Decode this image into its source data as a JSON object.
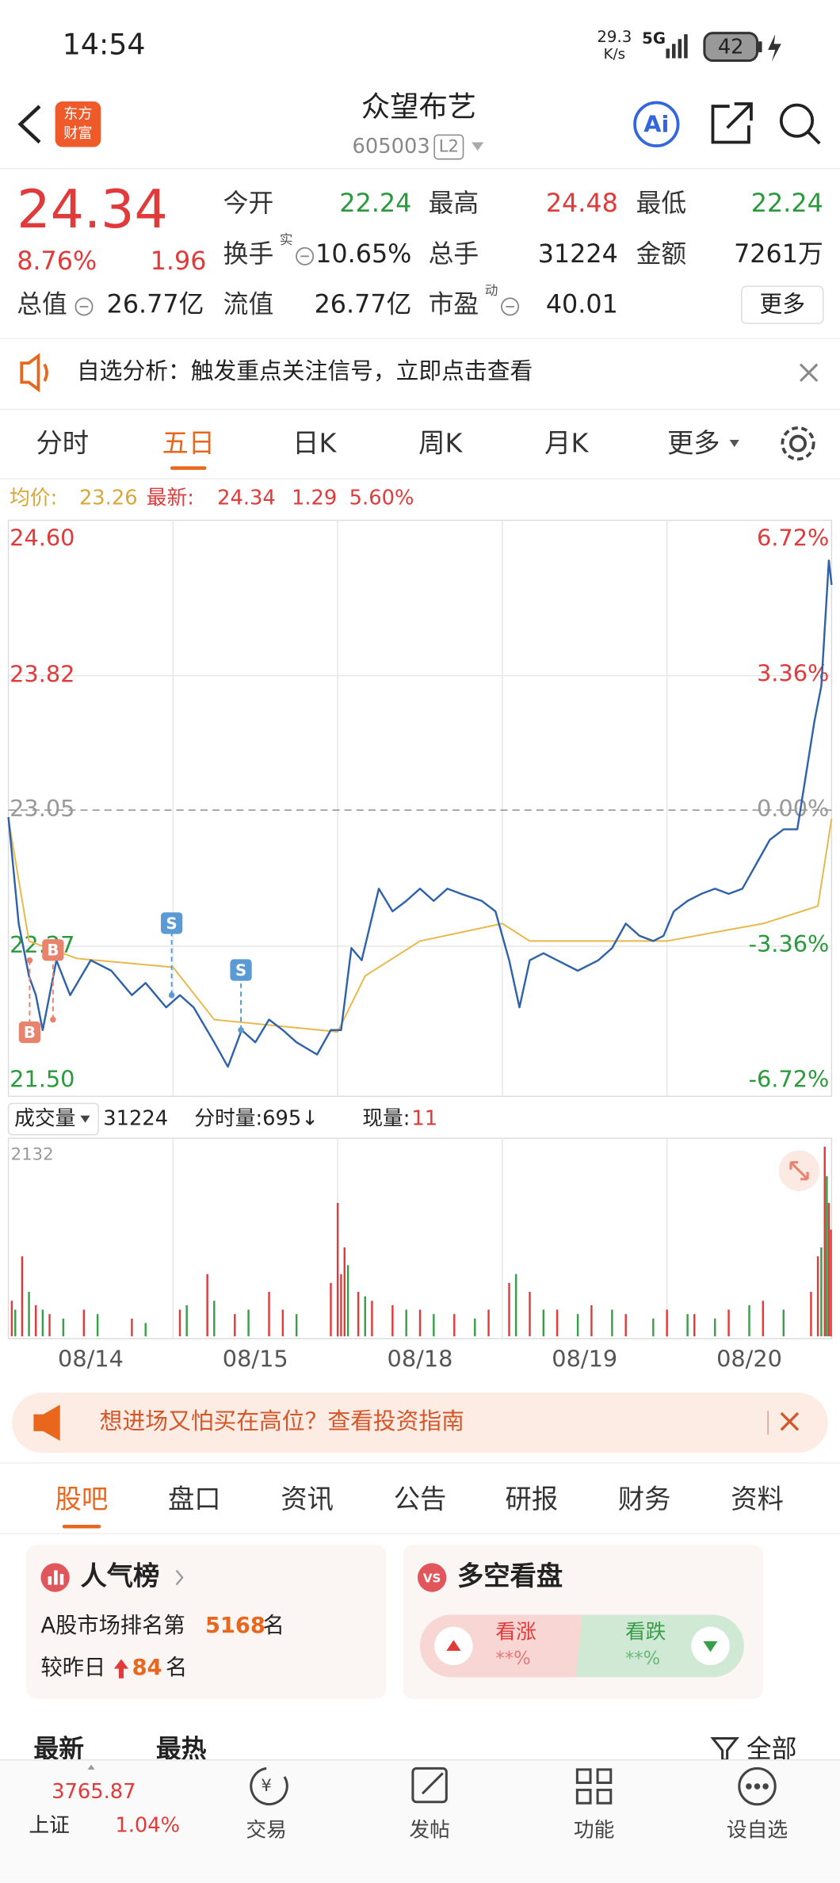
{
  "status_bar": {
    "time": "14:54",
    "net_speed": "29.3",
    "net_unit": "K/s",
    "network": "5G",
    "battery": "42"
  },
  "header": {
    "logo": [
      "东方",
      "财富"
    ],
    "name": "众望布艺",
    "code": "605003",
    "level": "L2",
    "ai": "Ai"
  },
  "quote": {
    "price": "24.34",
    "change_pct": "8.76%",
    "change": "1.96",
    "fields": [
      {
        "label": "今开",
        "value": "22.24",
        "color": "#2a9a3c"
      },
      {
        "label": "最高",
        "value": "24.48",
        "color": "#e03a3a"
      },
      {
        "label": "最低",
        "value": "22.24",
        "color": "#2a9a3c"
      },
      {
        "label": "换手",
        "mark": "实",
        "value": "10.65%"
      },
      {
        "label": "总手",
        "value": "31224"
      },
      {
        "label": "金额",
        "value": "7261万"
      },
      {
        "label": "总值",
        "value": "26.77亿"
      },
      {
        "label": "流值",
        "value": "26.77亿"
      },
      {
        "label": "市盈",
        "mark": "动",
        "value": "40.01"
      }
    ],
    "more": "更多"
  },
  "notice": "自选分析：触发重点关注信号，立即点击查看",
  "chart_tabs": [
    "分时",
    "五日",
    "日K",
    "周K",
    "月K",
    "更多"
  ],
  "active_chart_tab": 1,
  "summary": {
    "avg_label": "均价:",
    "avg": "23.26",
    "last_label": "最新:",
    "last": "24.34",
    "change": "1.29",
    "change_pct": "5.60%"
  },
  "price_chart": {
    "type": "line",
    "xlim": [
      0,
      1200
    ],
    "ylim": [
      21.5,
      24.6
    ],
    "yticks": [
      {
        "value": 24.6,
        "label": "24.60"
      },
      23.82,
      23.05,
      22.27,
      {
        "value": 21.5,
        "label": "21.50"
      }
    ],
    "y2lim": [
      -6.72,
      6.72
    ],
    "y2ticks": [
      {
        "value": 6.72,
        "label": "6.72%"
      },
      {
        "value": 3.36,
        "label": "3.36%"
      },
      {
        "value": 0,
        "label": "0.00%"
      },
      {
        "value": -3.36,
        "label": "-3.36%"
      },
      {
        "value": -6.72,
        "label": "-6.72%"
      }
    ],
    "dates": [
      "08/14",
      "08/15",
      "08/18",
      "08/19",
      "08/20"
    ],
    "series": [
      {
        "color": "#2f62a8",
        "x": [
          0,
          15,
          30,
          40,
          50,
          70,
          90,
          120,
          150,
          180,
          200,
          230,
          250,
          270,
          300,
          320,
          340,
          360,
          380,
          400,
          420,
          450,
          470,
          485,
          500,
          515,
          540,
          560,
          580,
          600,
          620,
          640,
          660,
          690,
          710,
          730,
          745,
          760,
          780,
          800,
          830,
          860,
          880,
          900,
          920,
          940,
          955,
          970,
          990,
          1010,
          1030,
          1050,
          1070,
          1090,
          1110,
          1130,
          1150,
          1175,
          1185,
          1196,
          1200
        ],
        "values": [
          23.01,
          22.4,
          22.1,
          21.99,
          21.79,
          22.19,
          21.99,
          22.19,
          22.13,
          21.99,
          22.06,
          21.92,
          21.99,
          21.92,
          21.72,
          21.58,
          21.79,
          21.72,
          21.85,
          21.79,
          21.72,
          21.65,
          21.79,
          21.79,
          22.26,
          22.19,
          22.6,
          22.47,
          22.53,
          22.6,
          22.53,
          22.6,
          22.57,
          22.53,
          22.47,
          22.19,
          21.92,
          22.19,
          22.23,
          22.19,
          22.13,
          22.19,
          22.26,
          22.4,
          22.33,
          22.3,
          22.33,
          22.47,
          22.53,
          22.57,
          22.6,
          22.57,
          22.6,
          22.74,
          22.88,
          22.94,
          22.94,
          23.56,
          23.76,
          24.48,
          24.34
        ]
      },
      {
        "color": "#e8b94a",
        "x": [
          0,
          30,
          100,
          240,
          300,
          480,
          520,
          600,
          720,
          760,
          960,
          1100,
          1180,
          1200
        ],
        "values": [
          23.0,
          22.3,
          22.2,
          22.15,
          21.85,
          21.78,
          22.1,
          22.3,
          22.4,
          22.3,
          22.3,
          22.4,
          22.5,
          23.0
        ]
      }
    ],
    "markers": [
      {
        "label": "B",
        "x": 31,
        "value": 22.19
      },
      {
        "label": "B",
        "x": 65,
        "value": 21.85
      },
      {
        "label": "S",
        "x": 238,
        "value": 21.99
      },
      {
        "label": "S",
        "x": 339,
        "value": 21.79
      }
    ]
  },
  "volume_bar": {
    "select": "成交量",
    "total": "31224",
    "tick_vol": "分时量:695↓",
    "cur_label": "现量:",
    "cur": "11"
  },
  "volume_chart": {
    "type": "bar",
    "xlim": [
      0,
      1200
    ],
    "ylim": [
      0,
      2132
    ],
    "yticks": [
      2132
    ],
    "series": [
      {
        "color": "#e03a3a",
        "x": [
          5,
          20,
          40,
          60,
          110,
          180,
          250,
          290,
          330,
          380,
          400,
          470,
          480,
          485,
          490,
          510,
          530,
          560,
          600,
          650,
          700,
          730,
          760,
          800,
          850,
          900,
          960,
          1000,
          1050,
          1100,
          1170,
          1180,
          1190,
          1196,
          1199
        ],
        "values": [
          400,
          900,
          350,
          250,
          300,
          200,
          300,
          700,
          250,
          500,
          300,
          600,
          1500,
          700,
          1000,
          500,
          400,
          350,
          300,
          250,
          300,
          600,
          500,
          300,
          350,
          250,
          300,
          250,
          300,
          400,
          500,
          900,
          2132,
          1500,
          1200
        ]
      },
      {
        "color": "#3a9d4a",
        "x": [
          10,
          30,
          50,
          80,
          130,
          200,
          260,
          300,
          350,
          420,
          495,
          520,
          580,
          620,
          680,
          740,
          780,
          830,
          880,
          940,
          990,
          1030,
          1080,
          1130,
          1185,
          1193
        ],
        "values": [
          300,
          500,
          300,
          200,
          250,
          150,
          350,
          400,
          300,
          250,
          800,
          450,
          300,
          250,
          200,
          700,
          300,
          250,
          300,
          200,
          250,
          200,
          350,
          300,
          1000,
          1800
        ]
      }
    ]
  },
  "banner": "想进场又怕买在高位？查看投资指南",
  "section_tabs": [
    "股吧",
    "盘口",
    "资讯",
    "公告",
    "研报",
    "财务",
    "资料"
  ],
  "popularity": {
    "title": "人气榜",
    "rank_prefix": "A股市场排名第",
    "rank": "5168",
    "rank_unit": "名",
    "change_prefix": "较昨日",
    "change": "84",
    "change_unit": "名"
  },
  "sentiment": {
    "badge": "VS",
    "title": "多空看盘",
    "bull": "看涨",
    "bull_pct": "**%",
    "bear": "看跌",
    "bear_pct": "**%"
  },
  "feed_sort": {
    "latest": "最新",
    "hot": "最热",
    "filter": "全部"
  },
  "index": {
    "value": "3765.87",
    "name": "上证",
    "change": "1.04%"
  },
  "nav": [
    "交易",
    "发帖",
    "功能",
    "设自选"
  ]
}
